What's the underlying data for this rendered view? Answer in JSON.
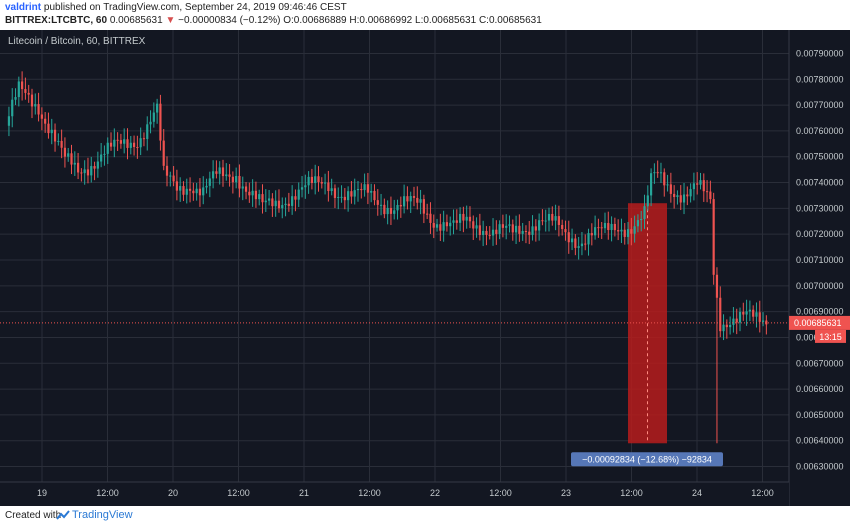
{
  "header": {
    "author": "valdrint",
    "published_text": "published on TradingView.com, September 24, 2019 09:46:46 CEST",
    "symbol": "BITTREX:LTCBTC, 60",
    "price": "0.00685631",
    "change_arrow": "▼",
    "change": "−0.00000834 (−0.12%)",
    "ohlc": "O:0.00686889 H:0.00686992 L:0.00685631 C:0.00685631"
  },
  "footer": {
    "created_with": "Created with",
    "brand": "TradingView"
  },
  "colors": {
    "up": "#26a69a",
    "down": "#ef5350",
    "background": "#131722",
    "grid": "#2a2e39",
    "text": "#c5cbce",
    "measure_fill": "#b71c1c",
    "measure_label": "#5677b7"
  },
  "chart_data": {
    "type": "candlestick",
    "title": "Litecoin / Bitcoin, 60, BITTREX",
    "ylim": [
      0.00624,
      0.00796
    ],
    "y_ticks": [
      "0.00630000",
      "0.00640000",
      "0.00650000",
      "0.00660000",
      "0.00670000",
      "0.00680000",
      "0.00690000",
      "0.00700000",
      "0.00710000",
      "0.00720000",
      "0.00730000",
      "0.00740000",
      "0.00750000",
      "0.00760000",
      "0.00770000",
      "0.00780000",
      "0.00790000"
    ],
    "x_ticks": [
      "19",
      "12:00",
      "20",
      "12:00",
      "21",
      "12:00",
      "22",
      "12:00",
      "23",
      "12:00",
      "24",
      "12:00"
    ],
    "last_price": "0.00685631",
    "countdown": "13:15",
    "trend": [
      [
        0,
        0.00762
      ],
      [
        4,
        0.00775
      ],
      [
        10,
        0.0077
      ],
      [
        14,
        0.0076
      ],
      [
        18,
        0.00748
      ],
      [
        22,
        0.00744
      ],
      [
        26,
        0.00748
      ],
      [
        30,
        0.00752
      ],
      [
        36,
        0.00754
      ],
      [
        40,
        0.00757
      ],
      [
        44,
        0.00765
      ],
      [
        46,
        0.00768
      ],
      [
        48,
        0.00742
      ],
      [
        52,
        0.00738
      ],
      [
        56,
        0.0074
      ],
      [
        60,
        0.00736
      ],
      [
        64,
        0.00742
      ],
      [
        70,
        0.00744
      ],
      [
        74,
        0.00736
      ],
      [
        78,
        0.0073
      ],
      [
        82,
        0.00732
      ],
      [
        86,
        0.00735
      ],
      [
        92,
        0.00738
      ],
      [
        98,
        0.0074
      ],
      [
        102,
        0.00736
      ],
      [
        106,
        0.00734
      ],
      [
        110,
        0.00736
      ],
      [
        114,
        0.00733
      ],
      [
        118,
        0.0073
      ],
      [
        122,
        0.00731
      ],
      [
        126,
        0.00732
      ],
      [
        130,
        0.00726
      ],
      [
        136,
        0.00722
      ],
      [
        140,
        0.00725
      ],
      [
        144,
        0.00724
      ],
      [
        148,
        0.00721
      ],
      [
        154,
        0.0072
      ],
      [
        158,
        0.00723
      ],
      [
        162,
        0.00726
      ],
      [
        166,
        0.00724
      ],
      [
        170,
        0.00719
      ],
      [
        174,
        0.00718
      ],
      [
        178,
        0.00721
      ],
      [
        182,
        0.0072
      ],
      [
        186,
        0.00722
      ],
      [
        190,
        0.00724
      ],
      [
        194,
        0.00728
      ],
      [
        196,
        0.0074
      ],
      [
        198,
        0.00742
      ],
      [
        202,
        0.00738
      ],
      [
        206,
        0.00736
      ],
      [
        210,
        0.00738
      ],
      [
        212,
        0.00735
      ],
      [
        214,
        0.00732
      ],
      [
        215,
        0.00705
      ],
      [
        216,
        0.00695
      ],
      [
        217,
        0.00686
      ],
      [
        220,
        0.00688
      ],
      [
        224,
        0.00688
      ],
      [
        228,
        0.00686
      ],
      [
        231,
        0.00686
      ]
    ],
    "spike_low": {
      "x": 216,
      "low": 0.00639
    },
    "measure": {
      "label": "−0.00092834 (−12.68%) −92834",
      "from": 0.00732,
      "to": 0.00639
    }
  }
}
